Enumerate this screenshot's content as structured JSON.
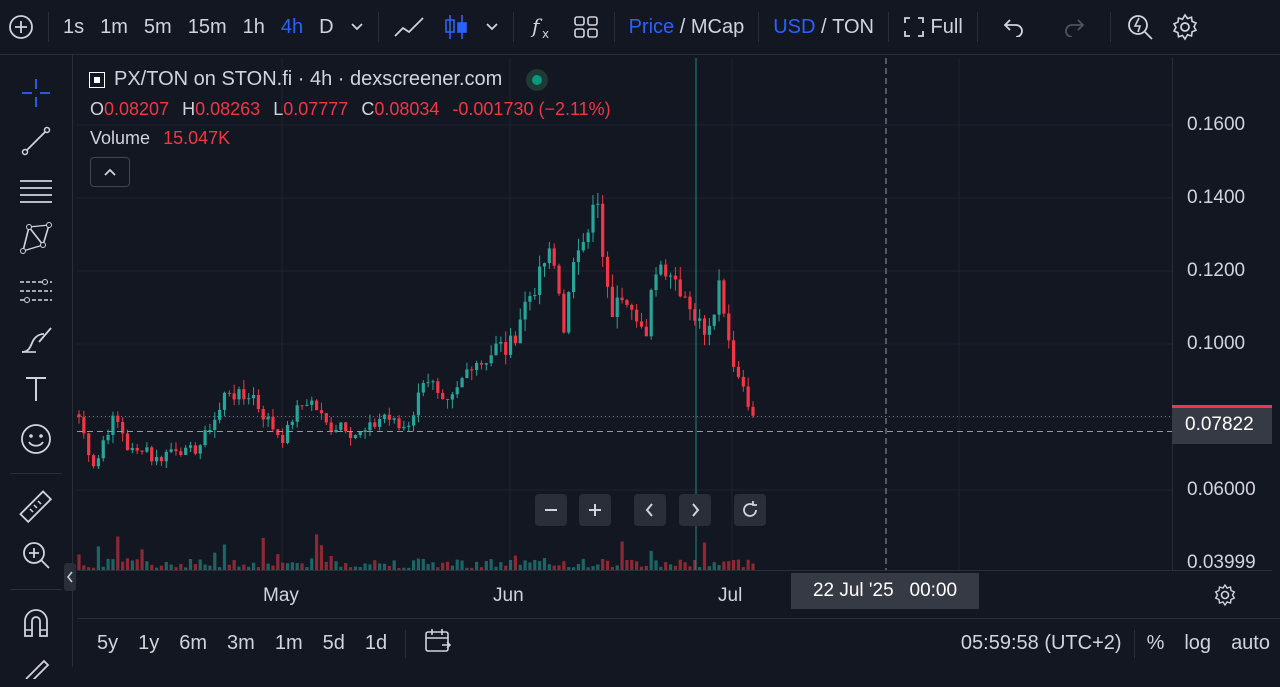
{
  "topbar": {
    "intervals": [
      "1s",
      "1m",
      "5m",
      "15m",
      "1h",
      "4h",
      "D"
    ],
    "active_interval": "4h",
    "price_label": "Price",
    "mcap_label": "MCap",
    "slash": "/",
    "usd_label": "USD",
    "ton_label": "TON",
    "full_label": "Full"
  },
  "legend": {
    "title": "PX/TON on STON.fi · 4h · dexscreener.com",
    "o_label": "O",
    "o_value": "0.08207",
    "h_label": "H",
    "h_value": "0.08263",
    "l_label": "L",
    "l_value": "0.07777",
    "c_label": "C",
    "c_value": "0.08034",
    "change": "-0.001730 (−2.11%)",
    "volume_label": "Volume",
    "volume_value": "15.047K"
  },
  "price_axis": {
    "ticks": [
      "0.1600",
      "0.1400",
      "0.1200",
      "0.1000",
      "0.06000",
      "0.03999"
    ],
    "current_price": "0.07822"
  },
  "time_axis": {
    "labels": [
      "May",
      "Jun",
      "Jul"
    ],
    "crosshair_time": "22 Jul '25   00:00"
  },
  "bottombar": {
    "ranges": [
      "5y",
      "1y",
      "6m",
      "3m",
      "1m",
      "5d",
      "1d"
    ],
    "clock": "05:59:58 (UTC+2)",
    "percent": "%",
    "log": "log",
    "auto": "auto"
  },
  "colors": {
    "up": "#26a69a",
    "down": "#f23645",
    "accent": "#2962ff",
    "background": "#131722",
    "grid": "#1f2330"
  },
  "chart_data": {
    "type": "candlestick",
    "pair": "PX/TON",
    "interval": "4h",
    "ylim": [
      0.0399,
      0.175
    ],
    "x_labels": [
      "May",
      "Jun",
      "Jul"
    ],
    "y_ticks": [
      0.16,
      0.14,
      0.12,
      0.1,
      0.06,
      0.03999
    ],
    "series_close": [
      0.08,
      0.072,
      0.066,
      0.074,
      0.079,
      0.078,
      0.071,
      0.07,
      0.073,
      0.068,
      0.069,
      0.071,
      0.072,
      0.07,
      0.071,
      0.073,
      0.078,
      0.081,
      0.088,
      0.086,
      0.085,
      0.087,
      0.082,
      0.079,
      0.076,
      0.074,
      0.08,
      0.083,
      0.085,
      0.082,
      0.078,
      0.077,
      0.079,
      0.076,
      0.075,
      0.076,
      0.078,
      0.081,
      0.079,
      0.077,
      0.078,
      0.083,
      0.092,
      0.089,
      0.083,
      0.083,
      0.087,
      0.092,
      0.096,
      0.095,
      0.097,
      0.1,
      0.098,
      0.102,
      0.11,
      0.114,
      0.118,
      0.125,
      0.12,
      0.105,
      0.118,
      0.13,
      0.133,
      0.14,
      0.116,
      0.108,
      0.114,
      0.113,
      0.108,
      0.1,
      0.121,
      0.122,
      0.12,
      0.116,
      0.113,
      0.107,
      0.104,
      0.108,
      0.118,
      0.102,
      0.092,
      0.088,
      0.08034
    ]
  },
  "drawn_candles": 140
}
